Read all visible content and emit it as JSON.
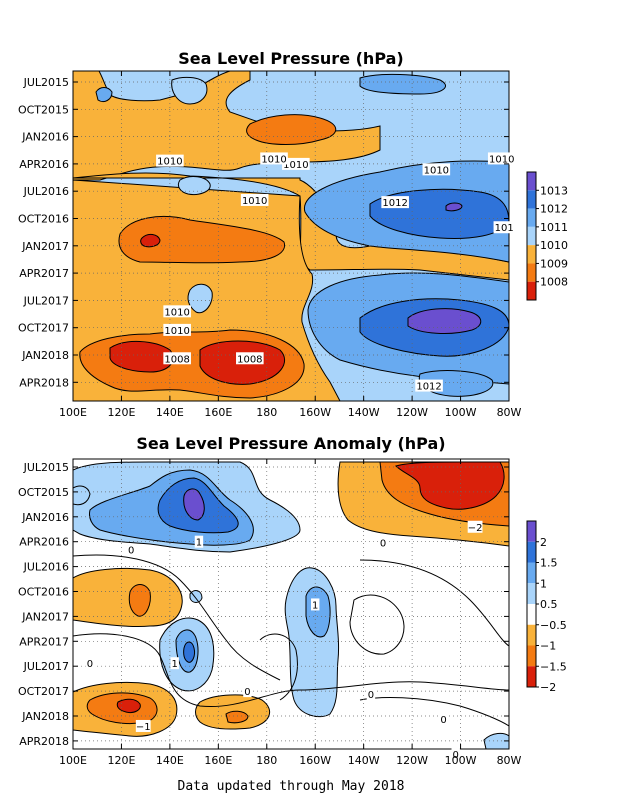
{
  "footer": "Data updated through May 2018",
  "chart_data": [
    {
      "type": "heatmap",
      "title": "Sea Level Pressure (hPa)",
      "xlabel": "",
      "ylabel": "",
      "x_ticks": [
        "100E",
        "120E",
        "140E",
        "160E",
        "180",
        "160W",
        "140W",
        "120W",
        "100W",
        "80W"
      ],
      "y_ticks": [
        "JUL2015",
        "OCT2015",
        "JAN2016",
        "APR2016",
        "JUL2016",
        "OCT2016",
        "JAN2017",
        "APR2017",
        "JUL2017",
        "OCT2017",
        "JAN2018",
        "APR2018"
      ],
      "colorbar": {
        "labels": [
          "1013",
          "1012",
          "1011",
          "1010",
          "1009",
          "1008"
        ],
        "colors": [
          "#6a4fcf",
          "#2f73d9",
          "#68aaf0",
          "#a9d4fa",
          "#f9b23a",
          "#f47b12",
          "#d9200a"
        ],
        "levels": [
          1008,
          1009,
          1010,
          1011,
          1012,
          1013
        ]
      },
      "contour_labels": [
        {
          "text": "1010",
          "lon": 175,
          "t": 2016.58
        },
        {
          "text": "1010",
          "lon": 140,
          "t": 2016.22
        },
        {
          "text": "1010",
          "lon": 192,
          "t": 2016.25
        },
        {
          "text": "1010",
          "lon": 183,
          "t": 2016.2
        },
        {
          "text": "1010",
          "lon": 250,
          "t": 2016.3
        },
        {
          "text": "1010",
          "lon": 277,
          "t": 2016.2
        },
        {
          "text": "1012",
          "lon": 233,
          "t": 2016.6
        },
        {
          "text": "101",
          "lon": 278,
          "t": 2016.83
        },
        {
          "text": "1010",
          "lon": 143,
          "t": 2017.6
        },
        {
          "text": "1010",
          "lon": 143,
          "t": 2017.77
        },
        {
          "text": "1008",
          "lon": 143,
          "t": 2018.03
        },
        {
          "text": "1008",
          "lon": 173,
          "t": 2018.03
        },
        {
          "text": "1012",
          "lon": 247,
          "t": 2018.28
        }
      ],
      "fields": [
        {
          "value": 1009.5,
          "shape": "band",
          "lon_range": [
            100,
            280
          ],
          "t_range": [
            2015.4,
            2018.4
          ]
        },
        {
          "value": 1011.0,
          "shape": "east-pacific",
          "lon_range": [
            190,
            280
          ],
          "t_range": [
            2016.3,
            2018.3
          ]
        },
        {
          "value": 1012.3,
          "shape": "high-cell",
          "lon_center": 255,
          "t_center": 2016.8
        },
        {
          "value": 1012.6,
          "shape": "high-cell",
          "lon_center": 255,
          "t_center": 2017.75
        },
        {
          "value": 1008.3,
          "shape": "low-cell",
          "lon_center": 130,
          "t_center": 2018.05
        },
        {
          "value": 1008.0,
          "shape": "low-cell",
          "lon_center": 168,
          "t_center": 2018.1
        },
        {
          "value": 1008.5,
          "shape": "low-cell",
          "lon_center": 160,
          "t_center": 2016.0
        },
        {
          "value": 1008.2,
          "shape": "low-cell",
          "lon_center": 148,
          "t_center": 2016.98
        }
      ]
    },
    {
      "type": "heatmap",
      "title": "Sea Level Pressure Anomaly (hPa)",
      "xlabel": "",
      "ylabel": "",
      "x_ticks": [
        "100E",
        "120E",
        "140E",
        "160E",
        "180",
        "160W",
        "140W",
        "120W",
        "100W",
        "80W"
      ],
      "y_ticks": [
        "JUL2015",
        "OCT2015",
        "JAN2016",
        "APR2016",
        "JUL2016",
        "OCT2016",
        "JAN2017",
        "APR2017",
        "JUL2017",
        "OCT2017",
        "JAN2018",
        "APR2018"
      ],
      "colorbar": {
        "labels": [
          "2",
          "1.5",
          "1",
          "0.5",
          "−0.5",
          "−1",
          "−1.5",
          "−2"
        ],
        "colors": [
          "#6a4fcf",
          "#2f73d9",
          "#68aaf0",
          "#a9d4fa",
          "#ffffff",
          "#f9b23a",
          "#f47b12",
          "#d9200a"
        ],
        "levels": [
          -2,
          -1.5,
          -1,
          -0.5,
          0.5,
          1,
          1.5,
          2
        ]
      },
      "contour_labels": [
        {
          "text": "1",
          "lon": 152,
          "t": 2016.25
        },
        {
          "text": "0",
          "lon": 124,
          "t": 2016.33
        },
        {
          "text": "0",
          "lon": 228,
          "t": 2016.26
        },
        {
          "text": "−2",
          "lon": 266,
          "t": 2016.1
        },
        {
          "text": "1",
          "lon": 200,
          "t": 2016.88
        },
        {
          "text": "1",
          "lon": 142,
          "t": 2017.47
        },
        {
          "text": "0",
          "lon": 107,
          "t": 2017.47
        },
        {
          "text": "0",
          "lon": 223,
          "t": 2017.78
        },
        {
          "text": "0",
          "lon": 172,
          "t": 2017.75
        },
        {
          "text": "0",
          "lon": 253,
          "t": 2018.03
        },
        {
          "text": "−1",
          "lon": 129,
          "t": 2018.1
        },
        {
          "text": "0",
          "lon": 258,
          "t": 2018.38
        }
      ],
      "fields": [
        {
          "value": 1.2,
          "shape": "anomaly-cell",
          "lon_center": 145,
          "t_center": 2016.15
        },
        {
          "value": 2.2,
          "shape": "anomaly-cell",
          "lon_center": 147,
          "t_center": 2016.07
        },
        {
          "value": -2.2,
          "shape": "anomaly-cell",
          "lon_center": 262,
          "t_center": 2015.95
        },
        {
          "value": -1.2,
          "shape": "anomaly-cell",
          "lon_center": 255,
          "t_center": 2016.0
        },
        {
          "value": -0.8,
          "shape": "anomaly-cell",
          "lon_center": 120,
          "t_center": 2016.8
        },
        {
          "value": 0.8,
          "shape": "anomaly-cell",
          "lon_center": 202,
          "t_center": 2017.1
        },
        {
          "value": 1.1,
          "shape": "anomaly-cell",
          "lon_center": 147,
          "t_center": 2017.55
        },
        {
          "value": -1.2,
          "shape": "anomaly-cell",
          "lon_center": 128,
          "t_center": 2018.1
        },
        {
          "value": -0.8,
          "shape": "anomaly-cell",
          "lon_center": 170,
          "t_center": 2018.1
        },
        {
          "value": 0.7,
          "shape": "anomaly-cell",
          "lon_center": 196,
          "t_center": 2017.75
        }
      ]
    }
  ]
}
